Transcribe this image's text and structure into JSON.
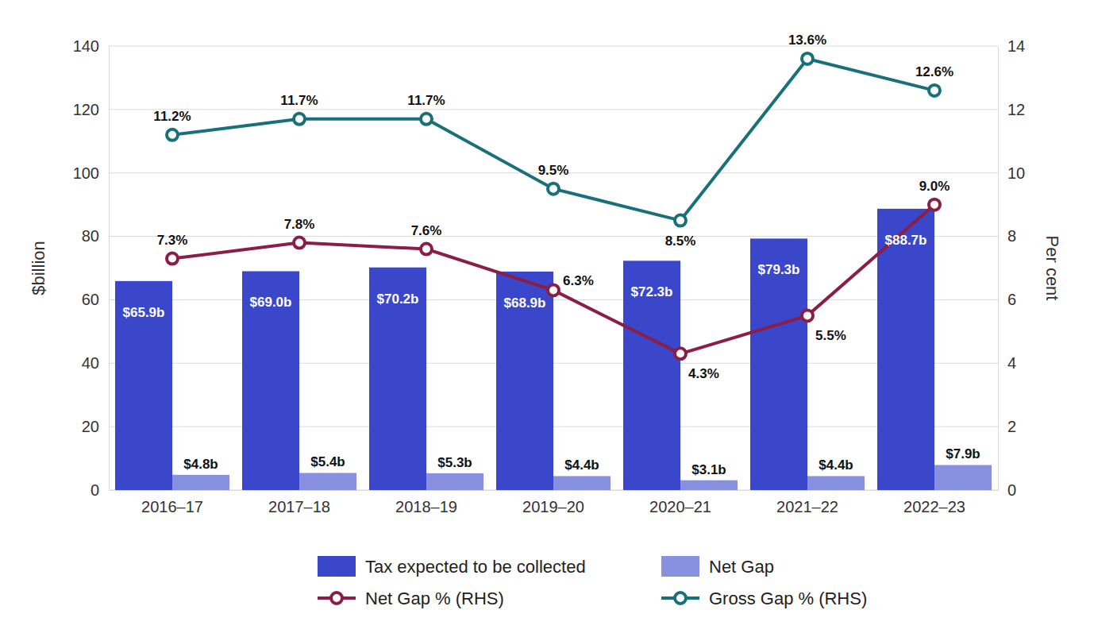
{
  "chart_data": {
    "type": "bar",
    "categories": [
      "2016–17",
      "2017–18",
      "2018–19",
      "2019–20",
      "2020–21",
      "2021–22",
      "2022–23"
    ],
    "y_label": "$billion",
    "y2_label": "Per cent",
    "ylim": [
      0,
      140
    ],
    "yticks": [
      0,
      20,
      40,
      60,
      80,
      100,
      120,
      140
    ],
    "y2lim": [
      0,
      14
    ],
    "y2ticks": [
      0,
      2,
      4,
      6,
      8,
      10,
      12,
      14
    ],
    "grid": true,
    "legend": "bottom",
    "data_labels": true,
    "series": [
      {
        "name": "Tax expected to be collected",
        "type": "bar",
        "color": "#3b47cb",
        "values": [
          65.9,
          69.0,
          70.2,
          68.9,
          72.3,
          79.3,
          88.7
        ],
        "value_labels": [
          "$65.9b",
          "$69.0b",
          "$70.2b",
          "$68.9b",
          "$72.3b",
          "$79.3b",
          "$88.7b"
        ]
      },
      {
        "name": "Net Gap",
        "type": "bar",
        "color": "#8890e0",
        "values": [
          4.8,
          5.4,
          5.3,
          4.4,
          3.1,
          4.4,
          7.9
        ],
        "value_labels": [
          "$4.8b",
          "$5.4b",
          "$5.3b",
          "$4.4b",
          "$3.1b",
          "$4.4b",
          "$7.9b"
        ]
      },
      {
        "name": "Net Gap % (RHS)",
        "type": "line",
        "axis": "y2",
        "color": "#8b1e46",
        "marker": "circle",
        "values": [
          7.3,
          7.8,
          7.6,
          6.3,
          4.3,
          5.5,
          9.0
        ],
        "value_labels": [
          "7.3%",
          "7.8%",
          "7.6%",
          "6.3%",
          "4.3%",
          "5.5%",
          "9.0%"
        ]
      },
      {
        "name": "Gross Gap % (RHS)",
        "type": "line",
        "axis": "y2",
        "color": "#17707a",
        "marker": "circle",
        "values": [
          11.2,
          11.7,
          11.7,
          9.5,
          8.5,
          13.6,
          12.6
        ],
        "value_labels": [
          "11.2%",
          "11.7%",
          "11.7%",
          "9.5%",
          "8.5%",
          "13.6%",
          "12.6%"
        ]
      }
    ]
  }
}
